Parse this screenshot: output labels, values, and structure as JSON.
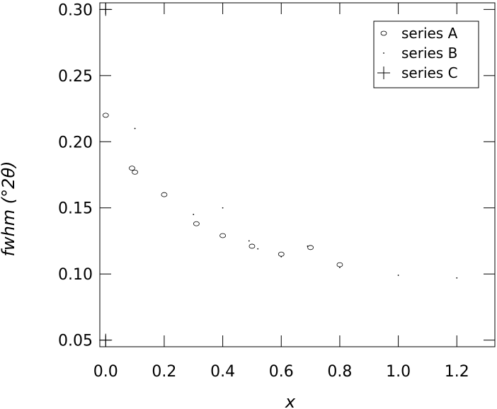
{
  "chart_data": {
    "type": "scatter",
    "title": "",
    "xlabel": "x",
    "ylabel": "fwhm (°2θ)",
    "xlim": [
      -0.02,
      1.33
    ],
    "ylim": [
      0.045,
      0.305
    ],
    "xticks": [
      0.0,
      0.2,
      0.4,
      0.6,
      0.8,
      1.0,
      1.2
    ],
    "yticks": [
      0.05,
      0.1,
      0.15,
      0.2,
      0.25,
      0.3
    ],
    "xtick_labels": [
      "0.0",
      "0.2",
      "0.4",
      "0.6",
      "0.8",
      "1.0",
      "1.2"
    ],
    "ytick_labels": [
      "0.05",
      "0.10",
      "0.15",
      "0.20",
      "0.25",
      "0.30"
    ],
    "grid": false,
    "legend_position": "top-right",
    "series": [
      {
        "name": "series A",
        "marker": "circle",
        "x": [
          0.0,
          0.09,
          0.1,
          0.2,
          0.31,
          0.4,
          0.5,
          0.6,
          0.7,
          0.8
        ],
        "y": [
          0.22,
          0.18,
          0.177,
          0.16,
          0.138,
          0.129,
          0.121,
          0.115,
          0.12,
          0.107
        ]
      },
      {
        "name": "series B",
        "marker": "dot",
        "x": [
          0.1,
          0.3,
          0.4,
          0.49,
          0.52,
          0.6,
          0.69,
          0.8,
          1.0,
          1.2
        ],
        "y": [
          0.21,
          0.145,
          0.15,
          0.125,
          0.119,
          0.113,
          0.121,
          0.105,
          0.099,
          0.097
        ]
      },
      {
        "name": "series C",
        "marker": "plus",
        "x": [
          0.0,
          0.0
        ],
        "y": [
          0.3,
          0.05
        ]
      }
    ]
  }
}
